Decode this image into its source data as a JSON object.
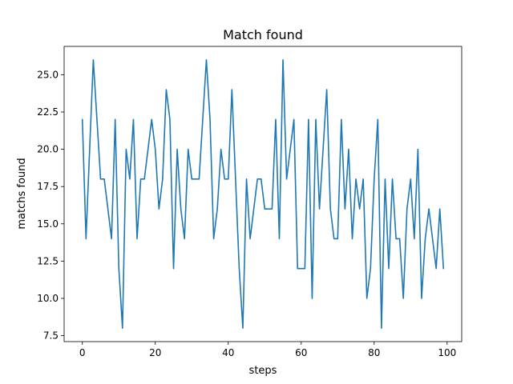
{
  "chart_data": {
    "type": "line",
    "title": "Match found",
    "xlabel": "steps",
    "ylabel": "matchs found",
    "xlim": [
      -5,
      104
    ],
    "ylim": [
      7.1,
      26.9
    ],
    "xticks": [
      0,
      20,
      40,
      60,
      80,
      100
    ],
    "xtick_labels": [
      "0",
      "20",
      "40",
      "60",
      "80",
      "100"
    ],
    "yticks": [
      7.5,
      10.0,
      12.5,
      15.0,
      17.5,
      20.0,
      22.5,
      25.0
    ],
    "ytick_labels": [
      "7.5",
      "10.0",
      "12.5",
      "15.0",
      "17.5",
      "20.0",
      "22.5",
      "25.0"
    ],
    "grid": false,
    "series": [
      {
        "color": "#1f77b4",
        "x": [
          0,
          1,
          2,
          3,
          4,
          5,
          6,
          7,
          8,
          9,
          10,
          11,
          12,
          13,
          14,
          15,
          16,
          17,
          18,
          19,
          20,
          21,
          22,
          23,
          24,
          25,
          26,
          27,
          28,
          29,
          30,
          31,
          32,
          33,
          34,
          35,
          36,
          37,
          38,
          39,
          40,
          41,
          42,
          43,
          44,
          45,
          46,
          47,
          48,
          49,
          50,
          51,
          52,
          53,
          54,
          55,
          56,
          57,
          58,
          59,
          60,
          61,
          62,
          63,
          64,
          65,
          66,
          67,
          68,
          69,
          70,
          71,
          72,
          73,
          74,
          75,
          76,
          77,
          78,
          79,
          80,
          81,
          82,
          83,
          84,
          85,
          86,
          87,
          88,
          89,
          90,
          91,
          92,
          93,
          94,
          95,
          96,
          97,
          98,
          99
        ],
        "y": [
          22,
          14,
          20,
          26,
          22,
          18,
          18,
          16,
          14,
          22,
          12,
          8,
          20,
          18,
          22,
          14,
          18,
          18,
          20,
          22,
          20,
          16,
          18,
          24,
          22,
          12,
          20,
          16,
          14,
          20,
          18,
          18,
          18,
          22,
          26,
          22,
          14,
          16,
          20,
          18,
          18,
          24,
          18,
          12,
          8,
          18,
          14,
          16,
          18,
          18,
          16,
          16,
          16,
          22,
          14,
          26,
          18,
          20,
          22,
          12,
          12,
          12,
          22,
          10,
          22,
          16,
          20,
          24,
          16,
          14,
          14,
          22,
          16,
          20,
          14,
          18,
          16,
          18,
          10,
          12,
          18,
          22,
          8,
          18,
          12,
          18,
          14,
          14,
          10,
          16,
          18,
          14,
          20,
          10,
          14,
          16,
          14,
          12,
          16,
          12
        ]
      }
    ]
  }
}
